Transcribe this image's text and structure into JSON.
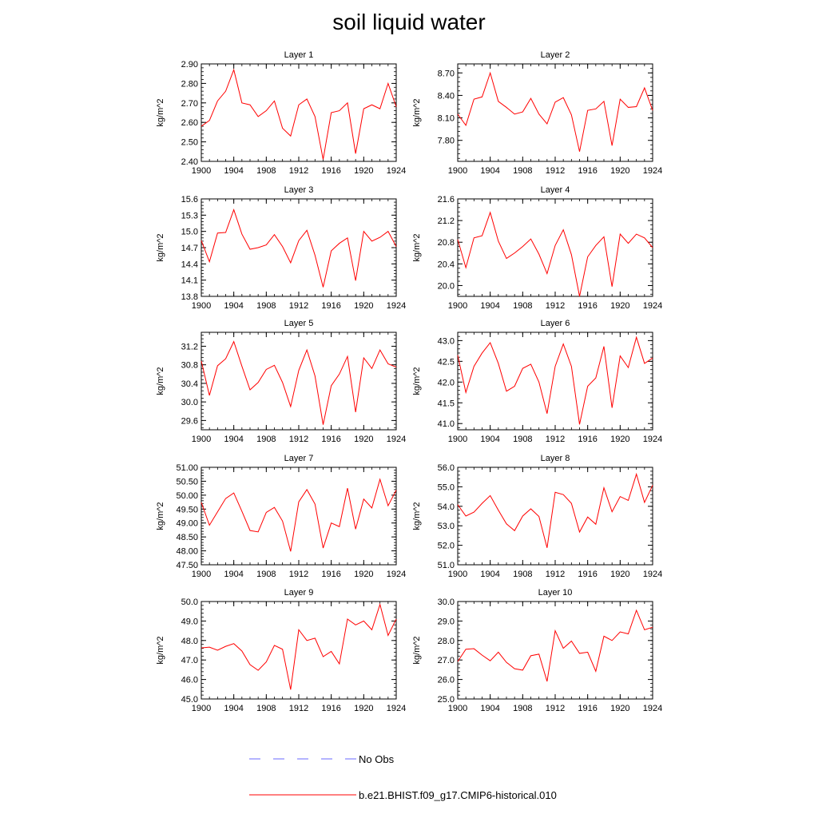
{
  "title": "soil liquid water",
  "legend": [
    {
      "label": "No Obs",
      "color": "#6a6aff",
      "dash": "dashed"
    },
    {
      "label": "b.e21.BHIST.f09_g17.CMIP6-historical.010",
      "color": "#ff0000",
      "dash": "solid"
    }
  ],
  "chart_data": [
    {
      "type": "line",
      "title": "Layer 1",
      "ylabel": "kg/m^2",
      "xlim": [
        1900,
        1924
      ],
      "xticks": [
        "1900",
        "1904",
        "1908",
        "1912",
        "1916",
        "1920",
        "1924"
      ],
      "ylim": [
        2.4,
        2.9
      ],
      "yticks": [
        "2.40",
        "2.50",
        "2.60",
        "2.70",
        "2.80",
        "2.90"
      ],
      "x": [
        1900,
        1901,
        1902,
        1903,
        1904,
        1905,
        1906,
        1907,
        1908,
        1909,
        1910,
        1911,
        1912,
        1913,
        1914,
        1915,
        1916,
        1917,
        1918,
        1919,
        1920,
        1921,
        1922,
        1923,
        1924
      ],
      "series": [
        {
          "color": "#ff0000",
          "values": [
            2.58,
            2.61,
            2.71,
            2.76,
            2.87,
            2.7,
            2.69,
            2.63,
            2.66,
            2.71,
            2.57,
            2.53,
            2.69,
            2.72,
            2.63,
            2.41,
            2.65,
            2.66,
            2.7,
            2.44,
            2.67,
            2.69,
            2.67,
            2.8,
            2.68
          ]
        }
      ]
    },
    {
      "type": "line",
      "title": "Layer 2",
      "ylabel": "kg/m^2",
      "xlim": [
        1900,
        1924
      ],
      "xticks": [
        "1900",
        "1904",
        "1908",
        "1912",
        "1916",
        "1920",
        "1924"
      ],
      "ylim": [
        7.52,
        8.82
      ],
      "yticks": [
        "7.80",
        "8.10",
        "8.40",
        "8.70"
      ],
      "x": [
        1900,
        1901,
        1902,
        1903,
        1904,
        1905,
        1906,
        1907,
        1908,
        1909,
        1910,
        1911,
        1912,
        1913,
        1914,
        1915,
        1916,
        1917,
        1918,
        1919,
        1920,
        1921,
        1922,
        1923,
        1924
      ],
      "series": [
        {
          "color": "#ff0000",
          "values": [
            8.15,
            8.0,
            8.35,
            8.38,
            8.7,
            8.32,
            8.24,
            8.15,
            8.18,
            8.36,
            8.15,
            8.02,
            8.31,
            8.37,
            8.14,
            7.65,
            8.2,
            8.22,
            8.32,
            7.73,
            8.35,
            8.24,
            8.25,
            8.5,
            8.2
          ]
        }
      ]
    },
    {
      "type": "line",
      "title": "Layer 3",
      "ylabel": "kg/m^2",
      "xlim": [
        1900,
        1924
      ],
      "xticks": [
        "1900",
        "1904",
        "1908",
        "1912",
        "1916",
        "1920",
        "1924"
      ],
      "ylim": [
        13.8,
        15.6
      ],
      "yticks": [
        "13.8",
        "14.1",
        "14.4",
        "14.7",
        "15.0",
        "15.3",
        "15.6"
      ],
      "x": [
        1900,
        1901,
        1902,
        1903,
        1904,
        1905,
        1906,
        1907,
        1908,
        1909,
        1910,
        1911,
        1912,
        1913,
        1914,
        1915,
        1916,
        1917,
        1918,
        1919,
        1920,
        1921,
        1922,
        1923,
        1924
      ],
      "series": [
        {
          "color": "#ff0000",
          "values": [
            14.83,
            14.44,
            14.97,
            14.98,
            15.4,
            14.95,
            14.67,
            14.7,
            14.75,
            14.94,
            14.72,
            14.42,
            14.83,
            15.02,
            14.56,
            13.97,
            14.64,
            14.78,
            14.88,
            14.09,
            15.0,
            14.82,
            14.89,
            15.0,
            14.72
          ]
        }
      ]
    },
    {
      "type": "line",
      "title": "Layer 4",
      "ylabel": "kg/m^2",
      "xlim": [
        1900,
        1924
      ],
      "xticks": [
        "1900",
        "1904",
        "1908",
        "1912",
        "1916",
        "1920",
        "1924"
      ],
      "ylim": [
        19.8,
        21.6
      ],
      "yticks": [
        "20.0",
        "20.4",
        "20.8",
        "21.2",
        "21.6"
      ],
      "x": [
        1900,
        1901,
        1902,
        1903,
        1904,
        1905,
        1906,
        1907,
        1908,
        1909,
        1910,
        1911,
        1912,
        1913,
        1914,
        1915,
        1916,
        1917,
        1918,
        1919,
        1920,
        1921,
        1922,
        1923,
        1924
      ],
      "series": [
        {
          "color": "#ff0000",
          "values": [
            20.85,
            20.33,
            20.88,
            20.92,
            21.35,
            20.82,
            20.5,
            20.6,
            20.72,
            20.86,
            20.58,
            20.22,
            20.74,
            21.03,
            20.57,
            19.8,
            20.53,
            20.74,
            20.9,
            19.98,
            20.95,
            20.78,
            20.95,
            20.88,
            20.7
          ]
        }
      ]
    },
    {
      "type": "line",
      "title": "Layer 5",
      "ylabel": "kg/m^2",
      "xlim": [
        1900,
        1924
      ],
      "xticks": [
        "1900",
        "1904",
        "1908",
        "1912",
        "1916",
        "1920",
        "1924"
      ],
      "ylim": [
        29.4,
        31.5
      ],
      "yticks": [
        "29.6",
        "30.0",
        "30.4",
        "30.8",
        "31.2"
      ],
      "x": [
        1900,
        1901,
        1902,
        1903,
        1904,
        1905,
        1906,
        1907,
        1908,
        1909,
        1910,
        1911,
        1912,
        1913,
        1914,
        1915,
        1916,
        1917,
        1918,
        1919,
        1920,
        1921,
        1922,
        1923,
        1924
      ],
      "series": [
        {
          "color": "#ff0000",
          "values": [
            30.88,
            30.14,
            30.78,
            30.93,
            31.3,
            30.77,
            30.26,
            30.42,
            30.7,
            30.79,
            30.42,
            29.9,
            30.68,
            31.12,
            30.56,
            29.51,
            30.35,
            30.6,
            30.98,
            29.78,
            30.95,
            30.72,
            31.12,
            30.82,
            30.75
          ]
        }
      ]
    },
    {
      "type": "line",
      "title": "Layer 6",
      "ylabel": "kg/m^2",
      "xlim": [
        1900,
        1924
      ],
      "xticks": [
        "1900",
        "1904",
        "1908",
        "1912",
        "1916",
        "1920",
        "1924"
      ],
      "ylim": [
        40.85,
        43.2
      ],
      "yticks": [
        "41.0",
        "41.5",
        "42.0",
        "42.5",
        "43.0"
      ],
      "x": [
        1900,
        1901,
        1902,
        1903,
        1904,
        1905,
        1906,
        1907,
        1908,
        1909,
        1910,
        1911,
        1912,
        1913,
        1914,
        1915,
        1916,
        1917,
        1918,
        1919,
        1920,
        1921,
        1922,
        1923,
        1924
      ],
      "series": [
        {
          "color": "#ff0000",
          "values": [
            42.65,
            41.75,
            42.38,
            42.7,
            42.95,
            42.45,
            41.78,
            41.9,
            42.33,
            42.43,
            42.0,
            41.24,
            42.38,
            42.92,
            42.38,
            40.98,
            41.9,
            42.1,
            42.86,
            41.38,
            42.63,
            42.35,
            43.08,
            42.45,
            42.58
          ]
        }
      ]
    },
    {
      "type": "line",
      "title": "Layer 7",
      "ylabel": "kg/m^2",
      "xlim": [
        1900,
        1924
      ],
      "xticks": [
        "1900",
        "1904",
        "1908",
        "1912",
        "1916",
        "1920",
        "1924"
      ],
      "ylim": [
        47.5,
        51.0
      ],
      "yticks": [
        "47.50",
        "48.00",
        "48.50",
        "49.00",
        "49.50",
        "50.00",
        "50.50",
        "51.00"
      ],
      "x": [
        1900,
        1901,
        1902,
        1903,
        1904,
        1905,
        1906,
        1907,
        1908,
        1909,
        1910,
        1911,
        1912,
        1913,
        1914,
        1915,
        1916,
        1917,
        1918,
        1919,
        1920,
        1921,
        1922,
        1923,
        1924
      ],
      "series": [
        {
          "color": "#ff0000",
          "values": [
            49.74,
            48.92,
            49.4,
            49.88,
            50.08,
            49.42,
            48.73,
            48.68,
            49.38,
            49.56,
            49.07,
            47.98,
            49.76,
            50.2,
            49.68,
            48.1,
            49.0,
            48.87,
            50.25,
            48.78,
            49.86,
            49.54,
            50.57,
            49.62,
            50.18
          ]
        }
      ]
    },
    {
      "type": "line",
      "title": "Layer 8",
      "ylabel": "kg/m^2",
      "xlim": [
        1900,
        1924
      ],
      "xticks": [
        "1900",
        "1904",
        "1908",
        "1912",
        "1916",
        "1920",
        "1924"
      ],
      "ylim": [
        51.0,
        56.0
      ],
      "yticks": [
        "51.0",
        "52.0",
        "53.0",
        "54.0",
        "55.0",
        "56.0"
      ],
      "x": [
        1900,
        1901,
        1902,
        1903,
        1904,
        1905,
        1906,
        1907,
        1908,
        1909,
        1910,
        1911,
        1912,
        1913,
        1914,
        1915,
        1916,
        1917,
        1918,
        1919,
        1920,
        1921,
        1922,
        1923,
        1924
      ],
      "series": [
        {
          "color": "#ff0000",
          "values": [
            54.08,
            53.5,
            53.7,
            54.15,
            54.55,
            53.8,
            53.1,
            52.75,
            53.5,
            53.87,
            53.48,
            51.87,
            54.72,
            54.6,
            54.15,
            52.68,
            53.45,
            53.08,
            54.95,
            53.72,
            54.5,
            54.3,
            55.65,
            54.2,
            55.08
          ]
        }
      ]
    },
    {
      "type": "line",
      "title": "Layer 9",
      "ylabel": "kg/m^2",
      "xlim": [
        1900,
        1924
      ],
      "xticks": [
        "1900",
        "1904",
        "1908",
        "1912",
        "1916",
        "1920",
        "1924"
      ],
      "ylim": [
        45.0,
        50.0
      ],
      "yticks": [
        "45.0",
        "46.0",
        "47.0",
        "48.0",
        "49.0",
        "50.0"
      ],
      "x": [
        1900,
        1901,
        1902,
        1903,
        1904,
        1905,
        1906,
        1907,
        1908,
        1909,
        1910,
        1911,
        1912,
        1913,
        1914,
        1915,
        1916,
        1917,
        1918,
        1919,
        1920,
        1921,
        1922,
        1923,
        1924
      ],
      "series": [
        {
          "color": "#ff0000",
          "values": [
            47.62,
            47.66,
            47.5,
            47.7,
            47.84,
            47.46,
            46.76,
            46.47,
            46.9,
            47.75,
            47.55,
            45.48,
            48.55,
            48.0,
            48.12,
            47.17,
            47.44,
            46.8,
            49.1,
            48.8,
            49.0,
            48.55,
            49.85,
            48.26,
            49.1
          ]
        }
      ]
    },
    {
      "type": "line",
      "title": "Layer 10",
      "ylabel": "kg/m^2",
      "xlim": [
        1900,
        1924
      ],
      "xticks": [
        "1900",
        "1904",
        "1908",
        "1912",
        "1916",
        "1920",
        "1924"
      ],
      "ylim": [
        25.0,
        30.0
      ],
      "yticks": [
        "25.0",
        "26.0",
        "27.0",
        "28.0",
        "29.0",
        "30.0"
      ],
      "x": [
        1900,
        1901,
        1902,
        1903,
        1904,
        1905,
        1906,
        1907,
        1908,
        1909,
        1910,
        1911,
        1912,
        1913,
        1914,
        1915,
        1916,
        1917,
        1918,
        1919,
        1920,
        1921,
        1922,
        1923,
        1924
      ],
      "series": [
        {
          "color": "#ff0000",
          "values": [
            26.92,
            27.55,
            27.58,
            27.25,
            26.96,
            27.4,
            26.88,
            26.55,
            26.48,
            27.22,
            27.3,
            25.9,
            28.5,
            27.6,
            27.97,
            27.34,
            27.4,
            26.42,
            28.22,
            28.0,
            28.44,
            28.34,
            29.55,
            28.55,
            28.68
          ]
        }
      ]
    }
  ]
}
